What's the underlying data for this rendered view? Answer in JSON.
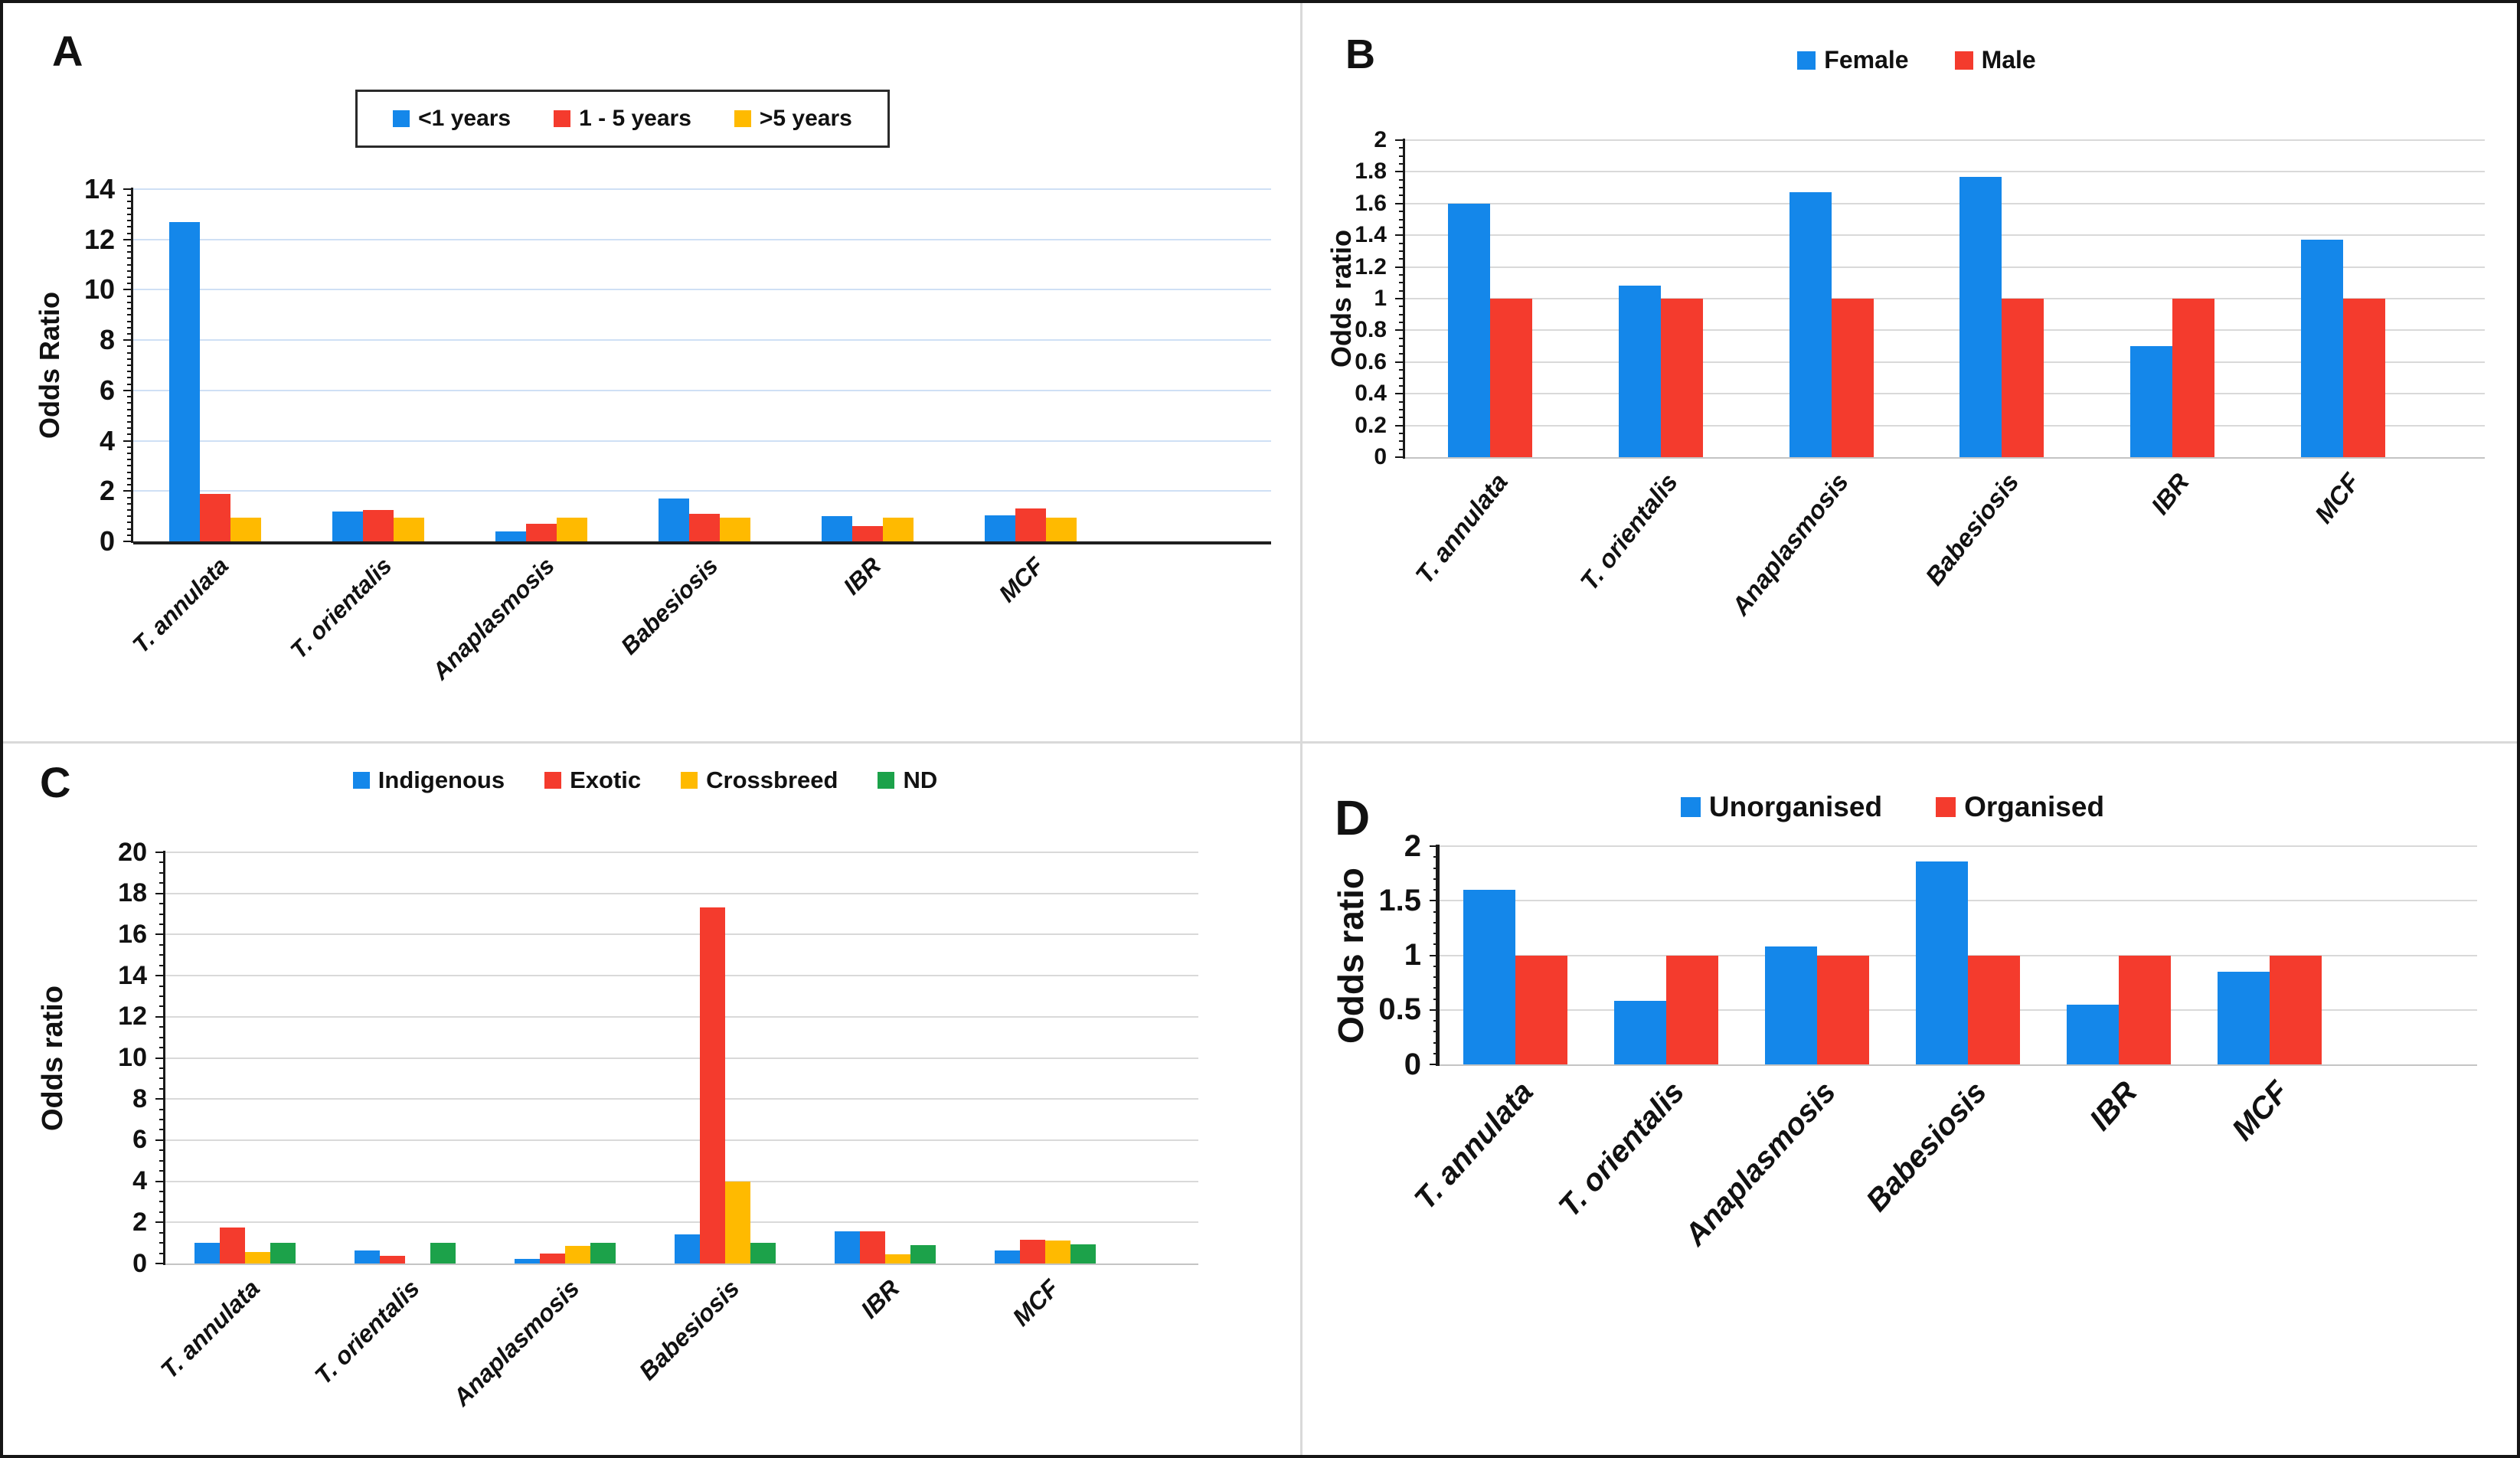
{
  "figure": {
    "background": "#ffffff",
    "border_color": "#161616",
    "divider_color": "#d9d9d9"
  },
  "chart_data": [
    {
      "panel": "A",
      "type": "bar",
      "title": "",
      "xlabel": "",
      "ylabel": "Odds Ratio",
      "ylim": [
        0,
        14
      ],
      "yticks": [
        0,
        2,
        4,
        6,
        8,
        10,
        12,
        14
      ],
      "minor_per_major": 8,
      "grid": true,
      "gridline_color": "#cfe0f5",
      "legend": {
        "position": "top",
        "boxed": true
      },
      "categories": [
        "T. annulata",
        "T. orientalis",
        "Anaplasmosis",
        "Babesiosis",
        "IBR",
        "MCF"
      ],
      "series": [
        {
          "name": "<1 years",
          "color": "#1487EA",
          "values": [
            12.7,
            1.2,
            0.4,
            1.7,
            1.0,
            1.05
          ]
        },
        {
          "name": "1 - 5 years",
          "color": "#F43B2D",
          "values": [
            1.9,
            1.25,
            0.7,
            1.1,
            0.62,
            1.3
          ]
        },
        {
          "name": ">5 years",
          "color": "#FFBA00",
          "values": [
            0.95,
            0.95,
            0.95,
            0.95,
            0.95,
            0.95
          ]
        }
      ]
    },
    {
      "panel": "B",
      "type": "bar",
      "title": "",
      "xlabel": "",
      "ylabel": "Odds ratio",
      "ylim": [
        0,
        2
      ],
      "yticks": [
        0,
        0.2,
        0.4,
        0.6,
        0.8,
        1,
        1.2,
        1.4,
        1.6,
        1.8,
        2
      ],
      "minor_per_major": 4,
      "grid": true,
      "gridline_color": "#d9d9d9",
      "legend": {
        "position": "top",
        "boxed": false
      },
      "categories": [
        "T. annulata",
        "T. orientalis",
        "Anaplasmosis",
        "Babesiosis",
        "IBR",
        "MCF"
      ],
      "series": [
        {
          "name": "Female",
          "color": "#1487EA",
          "values": [
            1.6,
            1.08,
            1.67,
            1.77,
            0.7,
            1.37
          ]
        },
        {
          "name": "Male",
          "color": "#F43B2D",
          "values": [
            1,
            1,
            1,
            1,
            1,
            1
          ]
        }
      ]
    },
    {
      "panel": "C",
      "type": "bar",
      "title": "",
      "xlabel": "",
      "ylabel": "Odds ratio",
      "ylim": [
        0,
        20
      ],
      "yticks": [
        0,
        2,
        4,
        6,
        8,
        10,
        12,
        14,
        16,
        18,
        20
      ],
      "minor_per_major": 4,
      "grid": true,
      "gridline_color": "#d9d9d9",
      "legend": {
        "position": "top",
        "boxed": false
      },
      "categories": [
        "T. annulata",
        "T. orientalis",
        "Anaplasmosis",
        "Babesiosis",
        "IBR",
        "MCF"
      ],
      "series": [
        {
          "name": "Indigenous",
          "color": "#1487EA",
          "values": [
            1.0,
            0.63,
            0.22,
            1.4,
            1.55,
            0.65
          ]
        },
        {
          "name": "Exotic",
          "color": "#F43B2D",
          "values": [
            1.75,
            0.38,
            0.5,
            17.3,
            1.55,
            1.15
          ]
        },
        {
          "name": "Crossbreed",
          "color": "#FFBA00",
          "values": [
            0.55,
            0,
            0.85,
            4.0,
            0.45,
            1.1
          ]
        },
        {
          "name": "ND",
          "color": "#1CA24A",
          "values": [
            1.0,
            1.0,
            1.0,
            1.0,
            0.9,
            0.92
          ]
        }
      ]
    },
    {
      "panel": "D",
      "type": "bar",
      "title": "",
      "xlabel": "",
      "ylabel": "Odds ratio",
      "ylim": [
        0,
        2
      ],
      "yticks": [
        0,
        0.5,
        1,
        1.5,
        2
      ],
      "minor_per_major": 5,
      "grid": true,
      "gridline_color": "#d9d9d9",
      "legend": {
        "position": "top",
        "boxed": false
      },
      "categories": [
        "T. annulata",
        "T. orientalis",
        "Anaplasmosis",
        "Babesiosis",
        "IBR",
        "MCF"
      ],
      "series": [
        {
          "name": "Unorganised",
          "color": "#1487EA",
          "values": [
            1.6,
            0.58,
            1.08,
            1.86,
            0.55,
            0.85
          ]
        },
        {
          "name": "Organised",
          "color": "#F43B2D",
          "values": [
            1,
            1,
            1,
            1,
            1,
            1
          ]
        }
      ]
    }
  ]
}
